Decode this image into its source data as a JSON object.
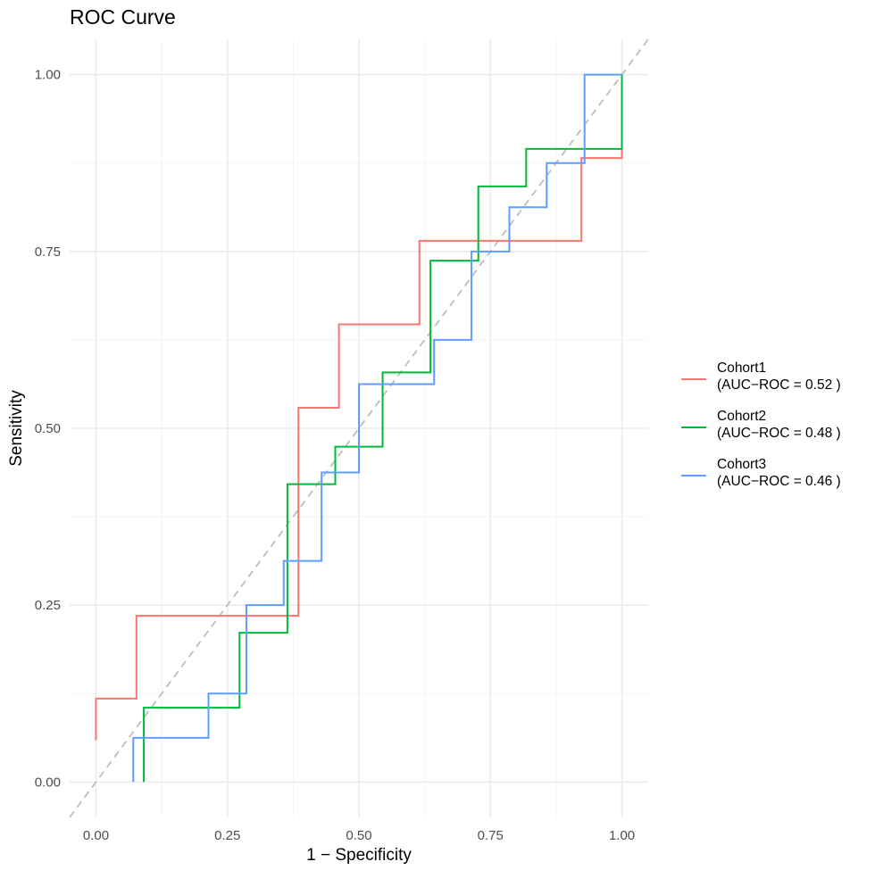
{
  "chart_data": {
    "type": "line",
    "title": "ROC Curve",
    "xlabel": "1 − Specificity",
    "ylabel": "Sensitivity",
    "xlim": [
      -0.05,
      1.05
    ],
    "ylim": [
      -0.05,
      1.05
    ],
    "x_ticks": [
      0,
      0.25,
      0.5,
      0.75,
      1
    ],
    "x_tick_labels": [
      "0.00",
      "0.25",
      "0.50",
      "0.75",
      "1.00"
    ],
    "y_ticks": [
      0,
      0.25,
      0.5,
      0.75,
      1
    ],
    "y_tick_labels": [
      "0.00",
      "0.25",
      "0.50",
      "0.75",
      "1.00"
    ],
    "grid": true,
    "reference_line": {
      "from": [
        0,
        0
      ],
      "to": [
        1,
        1
      ],
      "style": "dashed",
      "color": "#bdbdbd"
    },
    "legend_position": "right",
    "series": [
      {
        "name": "Cohort1",
        "legend_line1": "Cohort1",
        "legend_line2": "(AUC−ROC = 0.52 )",
        "color": "#F8766D",
        "points": [
          [
            0,
            0.059
          ],
          [
            0,
            0.118
          ],
          [
            0.077,
            0.118
          ],
          [
            0.077,
            0.235
          ],
          [
            0.385,
            0.235
          ],
          [
            0.385,
            0.529
          ],
          [
            0.462,
            0.529
          ],
          [
            0.462,
            0.647
          ],
          [
            0.615,
            0.647
          ],
          [
            0.615,
            0.765
          ],
          [
            0.923,
            0.765
          ],
          [
            0.923,
            0.882
          ],
          [
            1,
            0.882
          ],
          [
            1,
            1
          ]
        ]
      },
      {
        "name": "Cohort2",
        "legend_line1": "Cohort2",
        "legend_line2": "(AUC−ROC = 0.48 )",
        "color": "#00BA38",
        "points": [
          [
            0.091,
            0
          ],
          [
            0.091,
            0.105
          ],
          [
            0.273,
            0.105
          ],
          [
            0.273,
            0.211
          ],
          [
            0.364,
            0.211
          ],
          [
            0.364,
            0.421
          ],
          [
            0.455,
            0.421
          ],
          [
            0.455,
            0.474
          ],
          [
            0.545,
            0.474
          ],
          [
            0.545,
            0.579
          ],
          [
            0.636,
            0.579
          ],
          [
            0.636,
            0.737
          ],
          [
            0.727,
            0.737
          ],
          [
            0.727,
            0.842
          ],
          [
            0.818,
            0.842
          ],
          [
            0.818,
            0.895
          ],
          [
            1,
            0.895
          ],
          [
            1,
            1
          ]
        ]
      },
      {
        "name": "Cohort3",
        "legend_line1": "Cohort3",
        "legend_line2": "(AUC−ROC = 0.46 )",
        "color": "#619CFF",
        "points": [
          [
            0.071,
            0
          ],
          [
            0.071,
            0.0625
          ],
          [
            0.214,
            0.0625
          ],
          [
            0.214,
            0.125
          ],
          [
            0.286,
            0.125
          ],
          [
            0.286,
            0.25
          ],
          [
            0.357,
            0.25
          ],
          [
            0.357,
            0.3125
          ],
          [
            0.429,
            0.3125
          ],
          [
            0.429,
            0.4375
          ],
          [
            0.5,
            0.4375
          ],
          [
            0.5,
            0.5625
          ],
          [
            0.643,
            0.5625
          ],
          [
            0.643,
            0.625
          ],
          [
            0.714,
            0.625
          ],
          [
            0.714,
            0.75
          ],
          [
            0.786,
            0.75
          ],
          [
            0.786,
            0.8125
          ],
          [
            0.857,
            0.8125
          ],
          [
            0.857,
            0.875
          ],
          [
            0.929,
            0.875
          ],
          [
            0.929,
            1
          ],
          [
            1,
            1
          ]
        ]
      }
    ]
  }
}
